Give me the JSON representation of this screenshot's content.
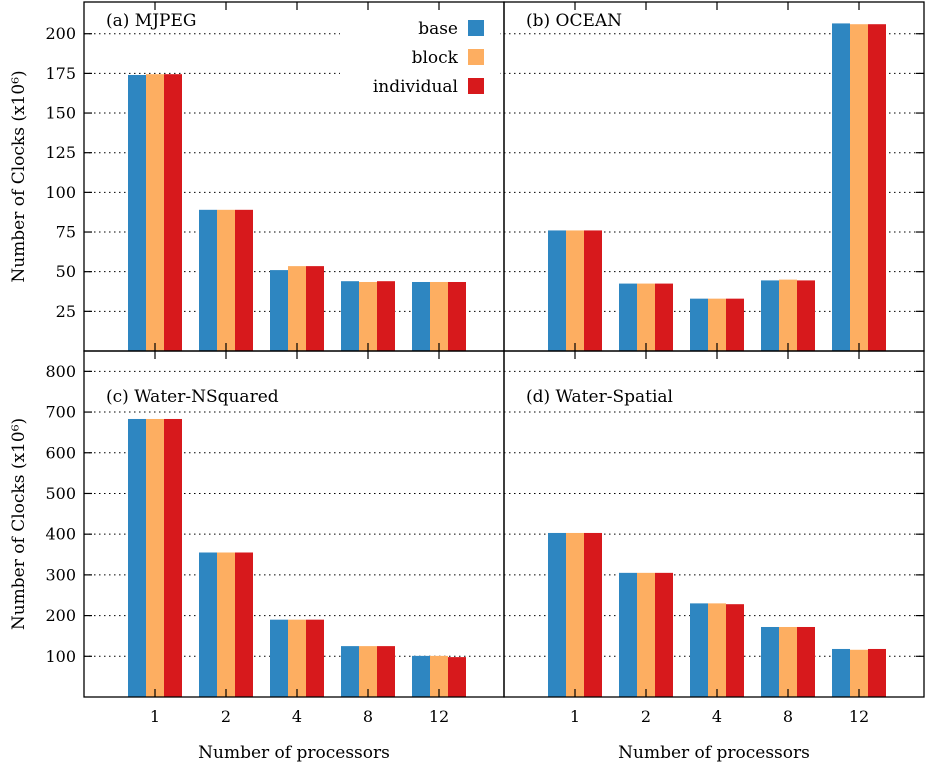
{
  "chart_data": [
    {
      "type": "bar",
      "title": "(a) MJPEG",
      "categories": [
        "1",
        "2",
        "4",
        "8",
        "12"
      ],
      "series": [
        {
          "name": "base",
          "values": [
            174,
            89,
            51,
            44,
            43.5
          ]
        },
        {
          "name": "block",
          "values": [
            174.5,
            89,
            53.5,
            43.5,
            43.5
          ]
        },
        {
          "name": "individual",
          "values": [
            174.5,
            89,
            53.5,
            44,
            43.5
          ]
        }
      ],
      "xlabel": "",
      "ylabel": "Number of Clocks (x10⁶)",
      "ylim": [
        0,
        220
      ],
      "yticks": [
        25,
        50,
        75,
        100,
        125,
        150,
        175,
        200
      ],
      "ytick_labels": [
        "25",
        "50",
        "75",
        "100",
        "125",
        "150",
        "175",
        "200"
      ],
      "grid": true,
      "legend": {
        "placement": "top-right",
        "entries": [
          "base",
          "block",
          "individual"
        ]
      }
    },
    {
      "type": "bar",
      "title": "(b) OCEAN",
      "categories": [
        "1",
        "2",
        "4",
        "8",
        "12"
      ],
      "series": [
        {
          "name": "base",
          "values": [
            76,
            42.5,
            33,
            44.5,
            206.5
          ]
        },
        {
          "name": "block",
          "values": [
            76,
            42.5,
            33,
            45,
            206
          ]
        },
        {
          "name": "individual",
          "values": [
            76,
            42.5,
            33,
            44.5,
            206
          ]
        }
      ],
      "xlabel": "",
      "ylabel": "",
      "ylim": [
        0,
        220
      ],
      "grid": true
    },
    {
      "type": "bar",
      "title": "(c) Water-NSquared",
      "categories": [
        "1",
        "2",
        "4",
        "8",
        "12"
      ],
      "series": [
        {
          "name": "base",
          "values": [
            683,
            355,
            190,
            125,
            101
          ]
        },
        {
          "name": "block",
          "values": [
            683,
            355,
            190,
            125,
            101
          ]
        },
        {
          "name": "individual",
          "values": [
            683,
            355,
            190,
            125,
            98
          ]
        }
      ],
      "xlabel": "Number of processors",
      "ylabel": "Number of Clocks (x10⁶)",
      "ylim": [
        0,
        850
      ],
      "yticks": [
        100,
        200,
        300,
        400,
        500,
        600,
        700,
        800
      ],
      "ytick_labels": [
        "100",
        "200",
        "300",
        "400",
        "500",
        "600",
        "700",
        "800"
      ],
      "grid": true
    },
    {
      "type": "bar",
      "title": "(d) Water-Spatial",
      "categories": [
        "1",
        "2",
        "4",
        "8",
        "12"
      ],
      "series": [
        {
          "name": "base",
          "values": [
            403,
            305,
            230,
            172,
            118
          ]
        },
        {
          "name": "block",
          "values": [
            403,
            305,
            230,
            172,
            116
          ]
        },
        {
          "name": "individual",
          "values": [
            403,
            305,
            228,
            172,
            118
          ]
        }
      ],
      "xlabel": "Number of processors",
      "ylabel": "",
      "ylim": [
        0,
        850
      ],
      "grid": true
    }
  ],
  "colors": {
    "base": "#2e86c1",
    "block": "#fdae61",
    "individual": "#d7191c"
  }
}
